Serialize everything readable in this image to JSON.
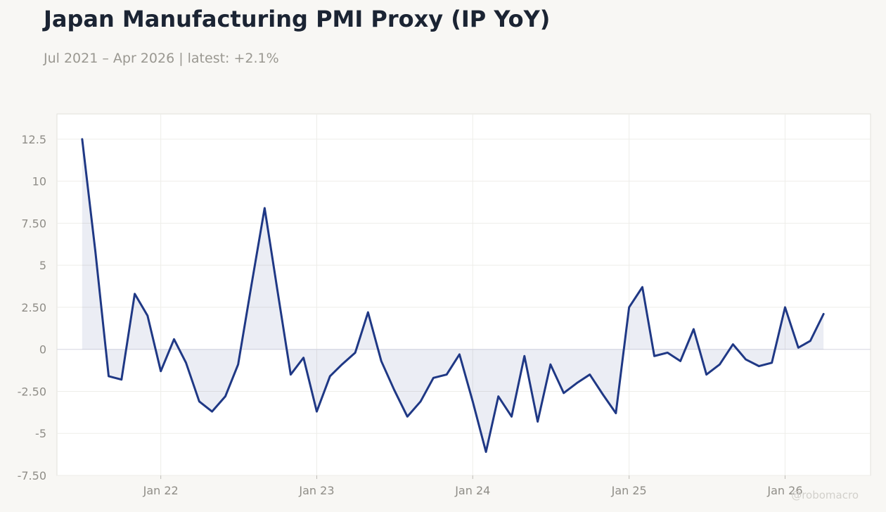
{
  "header": {
    "title": "Japan Manufacturing PMI Proxy (IP YoY)",
    "subtitle": "Jul 2021 – Apr 2026 | latest: +2.1%"
  },
  "watermark": "@robomacro",
  "colors": {
    "line": "#1f3885",
    "fill": "#1f3885",
    "background": "#f8f7f4",
    "plot_background": "#ffffff",
    "grid": "#eeede9",
    "zero_line": "#dcdde6"
  },
  "chart_data": {
    "type": "area",
    "title": "Japan Manufacturing PMI Proxy (IP YoY)",
    "xlabel": "",
    "ylabel": "",
    "ylim": [
      -7.5,
      14
    ],
    "yticks": [
      12.5,
      10,
      7.5,
      5,
      2.5,
      0,
      -2.5,
      -5,
      -7.5
    ],
    "ytick_labels": [
      "12.5",
      "10",
      "7.50",
      "5",
      "2.50",
      "0",
      "-2.50",
      "-5",
      "-7.50"
    ],
    "xlim": [
      "2021-05-03",
      "2026-07-20"
    ],
    "xticks": [
      "2022-01-01",
      "2023-01-01",
      "2024-01-01",
      "2025-01-01",
      "2026-01-01"
    ],
    "xtick_labels": [
      "Jan 22",
      "Jan 23",
      "Jan 24",
      "Jan 25",
      "Jan 26"
    ],
    "grid": true,
    "legend": "none",
    "series": [
      {
        "x": [
          "2021-07-01",
          "2021-08-01",
          "2021-09-01",
          "2021-10-01",
          "2021-11-01",
          "2021-12-01",
          "2022-01-01",
          "2022-02-01",
          "2022-03-01",
          "2022-04-01",
          "2022-05-01",
          "2022-06-01",
          "2022-07-01",
          "2022-08-01",
          "2022-09-01",
          "2022-10-01",
          "2022-11-01",
          "2022-12-01",
          "2023-01-01",
          "2023-02-01",
          "2023-03-01",
          "2023-04-01",
          "2023-05-01",
          "2023-06-01",
          "2023-07-01",
          "2023-08-01",
          "2023-09-01",
          "2023-10-01",
          "2023-11-01",
          "2023-12-01",
          "2024-01-01",
          "2024-02-01",
          "2024-03-01",
          "2024-04-01",
          "2024-05-01",
          "2024-06-01",
          "2024-07-01",
          "2024-08-01",
          "2024-09-01",
          "2024-10-01",
          "2024-11-01",
          "2024-12-01",
          "2025-01-01",
          "2025-02-01",
          "2025-03-01",
          "2025-04-01",
          "2025-05-01",
          "2025-06-01",
          "2025-07-01",
          "2025-08-01",
          "2025-09-01",
          "2025-10-01",
          "2025-11-01",
          "2025-12-01",
          "2026-01-01",
          "2026-02-01",
          "2026-03-01",
          "2026-04-01"
        ],
        "values": [
          12.5,
          5.8,
          -1.6,
          -1.8,
          3.3,
          2.0,
          -1.3,
          0.6,
          -0.8,
          -3.1,
          -3.7,
          -2.8,
          -0.9,
          3.8,
          8.4,
          3.5,
          -1.5,
          -0.5,
          -3.7,
          -1.6,
          -0.9,
          -0.2,
          2.2,
          -0.7,
          -2.4,
          -4.0,
          -3.1,
          -1.7,
          -1.5,
          -0.3,
          -3.1,
          -6.1,
          -2.8,
          -4.0,
          -0.4,
          -4.3,
          -0.9,
          -2.6,
          -2.0,
          -1.5,
          -2.7,
          -3.8,
          2.5,
          3.7,
          -0.4,
          -0.2,
          -0.7,
          1.2,
          -1.5,
          -0.9,
          0.3,
          -0.6,
          -1.0,
          -0.8,
          2.5,
          0.1,
          0.5,
          2.1
        ]
      }
    ]
  }
}
